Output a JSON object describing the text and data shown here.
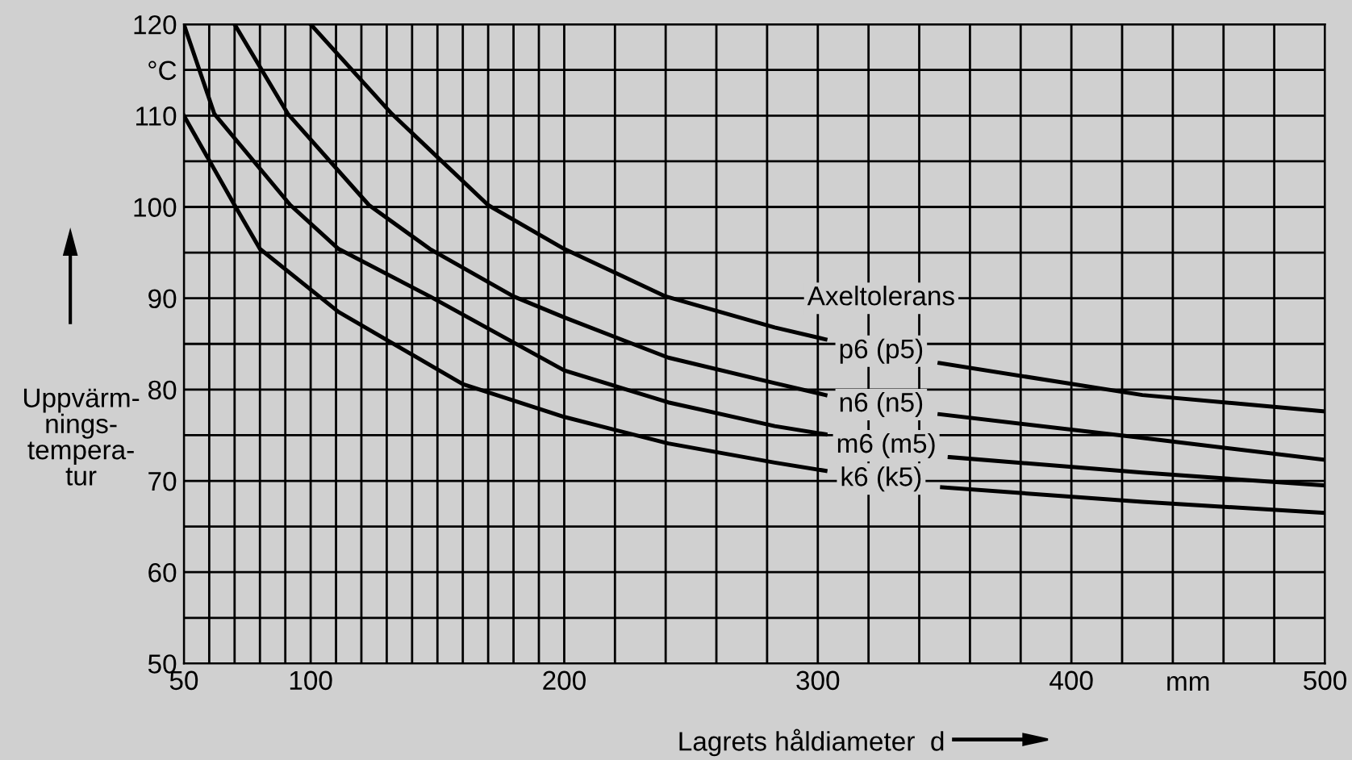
{
  "chart_data": {
    "type": "line",
    "xlabel": "Lagrets håldiameter  d",
    "ylabel": "Uppvärm-\nnings-\ntempera-\ntur",
    "legend_title": "Axeltolerans",
    "annotations": [
      "mm"
    ],
    "xlim": [
      50,
      500
    ],
    "ylim": [
      50,
      120
    ],
    "xticks": [
      50,
      {
        "value": 60,
        "label": null
      },
      {
        "value": 70,
        "label": null
      },
      {
        "value": 80,
        "label": null
      },
      {
        "value": 90,
        "label": null
      },
      100,
      {
        "value": 110,
        "label": null
      },
      {
        "value": 120,
        "label": null
      },
      {
        "value": 130,
        "label": null
      },
      {
        "value": 140,
        "label": null
      },
      {
        "value": 150,
        "label": null
      },
      {
        "value": 160,
        "label": null
      },
      {
        "value": 170,
        "label": null
      },
      {
        "value": 180,
        "label": null
      },
      {
        "value": 190,
        "label": null
      },
      200,
      {
        "value": 220,
        "label": null
      },
      {
        "value": 240,
        "label": null
      },
      {
        "value": 260,
        "label": null
      },
      {
        "value": 280,
        "label": null
      },
      300,
      {
        "value": 320,
        "label": null
      },
      {
        "value": 340,
        "label": null
      },
      {
        "value": 360,
        "label": null
      },
      {
        "value": 380,
        "label": null
      },
      400,
      {
        "value": 420,
        "label": null
      },
      {
        "value": 440,
        "label": null
      },
      {
        "value": 460,
        "label": null
      },
      {
        "value": 480,
        "label": null
      },
      500
    ],
    "yticks": [
      50,
      {
        "value": 55,
        "label": null
      },
      60,
      {
        "value": 65,
        "label": null
      },
      70,
      {
        "value": 75,
        "label": null
      },
      80,
      {
        "value": 85,
        "label": null
      },
      90,
      {
        "value": 95,
        "label": null
      },
      100,
      {
        "value": 105,
        "label": null
      },
      110,
      {
        "value": 115,
        "label": "°C"
      },
      120
    ],
    "grid": true,
    "legend": false,
    "marker": "none",
    "line_style": "solid",
    "series": [
      {
        "name": "p6 (p5)",
        "color": "#000000",
        "x": [
          100,
          132,
          170,
          200,
          240,
          283,
          303,
          325,
          348,
          428,
          500
        ],
        "values": [
          120,
          110.2,
          100.2,
          95.4,
          90.2,
          86.8,
          85.5,
          null,
          82.9,
          79.4,
          77.6
        ]
      },
      {
        "name": "n6 (n5)",
        "color": "#000000",
        "x": [
          70,
          91,
          123,
          147,
          180,
          200,
          241,
          283,
          303,
          325,
          348,
          428,
          500
        ],
        "values": [
          120,
          110.2,
          100.2,
          95.4,
          90.2,
          87.9,
          83.5,
          80.7,
          79.4,
          null,
          77.3,
          74.7,
          72.3
        ]
      },
      {
        "name": "m6 (m5)",
        "color": "#000000",
        "x": [
          50,
          62,
          92,
          111,
          147,
          200,
          241,
          283,
          303,
          327,
          352,
          428,
          500
        ],
        "values": [
          120,
          110.2,
          100.2,
          95.4,
          90.2,
          82.1,
          78.6,
          76,
          75.1,
          null,
          72.6,
          70.9,
          69.5
        ]
      },
      {
        "name": "k6 (k5)",
        "color": "#000000",
        "x": [
          50,
          70,
          80,
          111,
          160,
          200,
          241,
          283,
          303,
          325,
          349,
          428,
          500
        ],
        "values": [
          110,
          100.2,
          95.4,
          88.5,
          80.6,
          77,
          74.1,
          72,
          71.1,
          null,
          69.3,
          67.7,
          66.5
        ]
      }
    ]
  }
}
